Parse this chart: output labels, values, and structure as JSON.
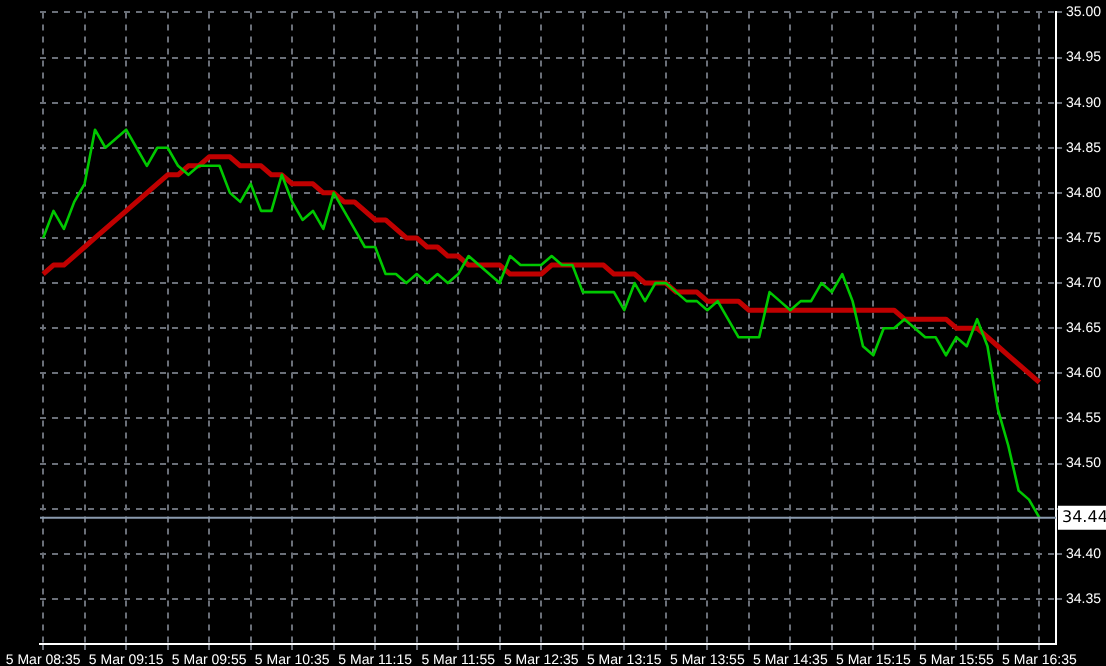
{
  "chart_data": {
    "type": "line",
    "grid": true,
    "legend": false,
    "marker": "none",
    "line_style": "solid",
    "categories": [
      "5 Mar 08:35",
      null,
      null,
      null,
      null,
      null,
      null,
      null,
      "5 Mar 09:15",
      null,
      null,
      null,
      null,
      null,
      null,
      null,
      "5 Mar 09:55",
      null,
      null,
      null,
      null,
      null,
      null,
      null,
      "5 Mar 10:35",
      null,
      null,
      null,
      null,
      null,
      null,
      null,
      "5 Mar 11:15",
      null,
      null,
      null,
      null,
      null,
      null,
      null,
      "5 Mar 11:55",
      null,
      null,
      null,
      null,
      null,
      null,
      null,
      "5 Mar 12:35",
      null,
      null,
      null,
      null,
      null,
      null,
      null,
      "5 Mar 13:15",
      null,
      null,
      null,
      null,
      null,
      null,
      null,
      "5 Mar 13:55",
      null,
      null,
      null,
      null,
      null,
      null,
      null,
      "5 Mar 14:35",
      null,
      null,
      null,
      null,
      null,
      null,
      null,
      "5 Mar 15:15",
      null,
      null,
      null,
      null,
      null,
      null,
      null,
      "5 Mar 15:55",
      null,
      null,
      null,
      null,
      null,
      null,
      null,
      "5 Mar 16:35"
    ],
    "ylim": [
      34.3,
      35.0
    ],
    "yticks": [
      {
        "value": 34.35,
        "label": "34.35"
      },
      {
        "value": 34.4,
        "label": "34.40"
      },
      {
        "value": 34.45,
        "label": null
      },
      {
        "value": 34.5,
        "label": "34.50"
      },
      {
        "value": 34.55,
        "label": "34.55"
      },
      {
        "value": 34.6,
        "label": "34.60"
      },
      {
        "value": 34.65,
        "label": "34.65"
      },
      {
        "value": 34.7,
        "label": "34.70"
      },
      {
        "value": 34.75,
        "label": "34.75"
      },
      {
        "value": 34.8,
        "label": "34.80"
      },
      {
        "value": 34.85,
        "label": "34.85"
      },
      {
        "value": 34.9,
        "label": "34.90"
      },
      {
        "value": 34.95,
        "label": "34.95"
      },
      {
        "value": 35.0,
        "label": "35.00"
      }
    ],
    "ref_lines": [
      {
        "axis": "y",
        "value": 34.44,
        "label": "34.44",
        "color": "#8a9aae"
      }
    ],
    "series": [
      {
        "color": "#00c800",
        "values": [
          34.75,
          34.78,
          34.76,
          34.79,
          34.81,
          34.87,
          34.85,
          34.86,
          34.87,
          34.85,
          34.83,
          34.85,
          34.85,
          34.83,
          34.82,
          34.83,
          34.83,
          34.83,
          34.8,
          34.79,
          34.81,
          34.78,
          34.78,
          34.82,
          34.79,
          34.77,
          34.78,
          34.76,
          34.8,
          34.78,
          34.76,
          34.74,
          34.74,
          34.71,
          34.71,
          34.7,
          34.71,
          34.7,
          34.71,
          34.7,
          34.71,
          34.73,
          34.72,
          34.71,
          34.7,
          34.73,
          34.72,
          34.72,
          34.72,
          34.73,
          34.72,
          34.72,
          34.69,
          34.69,
          34.69,
          34.69,
          34.67,
          34.7,
          34.68,
          34.7,
          34.7,
          34.69,
          34.68,
          34.68,
          34.67,
          34.68,
          34.66,
          34.64,
          34.64,
          34.64,
          34.69,
          34.68,
          34.67,
          34.68,
          34.68,
          34.7,
          34.69,
          34.71,
          34.68,
          34.63,
          34.62,
          34.65,
          34.65,
          34.66,
          34.65,
          34.64,
          34.64,
          34.62,
          34.64,
          34.63,
          34.66,
          34.63,
          34.56,
          34.52,
          34.47,
          34.46,
          34.44
        ]
      },
      {
        "color": "#c00000",
        "values": [
          34.71,
          34.72,
          34.72,
          34.73,
          34.74,
          34.75,
          34.76,
          34.77,
          34.78,
          34.79,
          34.8,
          34.81,
          34.82,
          34.82,
          34.83,
          34.83,
          34.84,
          34.84,
          34.84,
          34.83,
          34.83,
          34.83,
          34.82,
          34.82,
          34.81,
          34.81,
          34.81,
          34.8,
          34.8,
          34.79,
          34.79,
          34.78,
          34.77,
          34.77,
          34.76,
          34.75,
          34.75,
          34.74,
          34.74,
          34.73,
          34.73,
          34.72,
          34.72,
          34.72,
          34.72,
          34.71,
          34.71,
          34.71,
          34.71,
          34.72,
          34.72,
          34.72,
          34.72,
          34.72,
          34.72,
          34.71,
          34.71,
          34.71,
          34.7,
          34.7,
          34.7,
          34.69,
          34.69,
          34.69,
          34.68,
          34.68,
          34.68,
          34.68,
          34.67,
          34.67,
          34.67,
          34.67,
          34.67,
          34.67,
          34.67,
          34.67,
          34.67,
          34.67,
          34.67,
          34.67,
          34.67,
          34.67,
          34.67,
          34.66,
          34.66,
          34.66,
          34.66,
          34.66,
          34.65,
          34.65,
          34.65,
          34.64,
          34.63,
          34.62,
          34.61,
          34.6,
          34.59
        ]
      }
    ]
  }
}
